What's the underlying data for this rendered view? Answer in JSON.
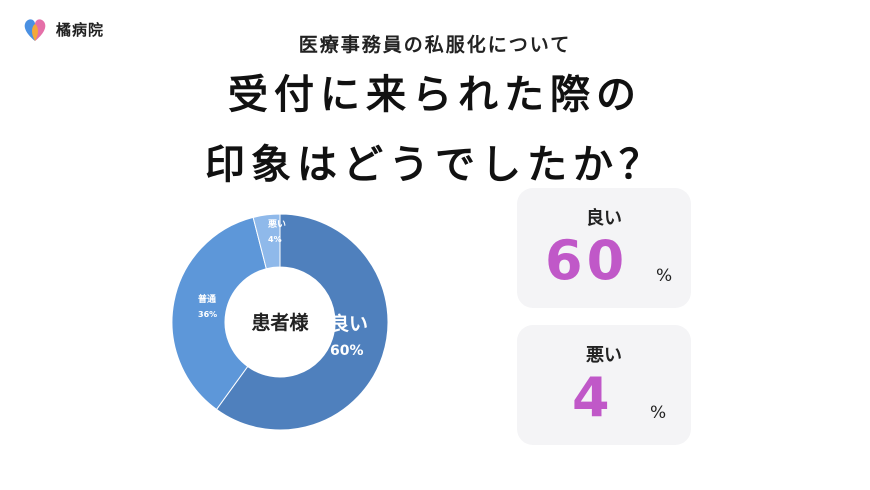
{
  "brand": {
    "logo_icon": "heart-leaf-logo-icon",
    "name": "橘病院",
    "colors": [
      "#4a90e2",
      "#e56fa8",
      "#f4a83a"
    ]
  },
  "header": {
    "subtitle": "医療事務員の私服化について",
    "title_line1": "受付に来られた際の",
    "title_line2": "印象はどうでしたか？"
  },
  "chart_data": {
    "type": "pie",
    "variant": "donut",
    "center_label": "患者様",
    "categories": [
      "良い",
      "普通",
      "悪い"
    ],
    "values": [
      60,
      36,
      4
    ],
    "value_labels": [
      "60%",
      "36%",
      "4%"
    ],
    "colors": [
      "#4f80bd",
      "#5d97d9",
      "#8fb9ea"
    ],
    "start": "top",
    "direction": "clockwise"
  },
  "cards": [
    {
      "label": "良い",
      "value": "60",
      "unit": "%"
    },
    {
      "label": "悪い",
      "value": "4",
      "unit": "%"
    }
  ]
}
